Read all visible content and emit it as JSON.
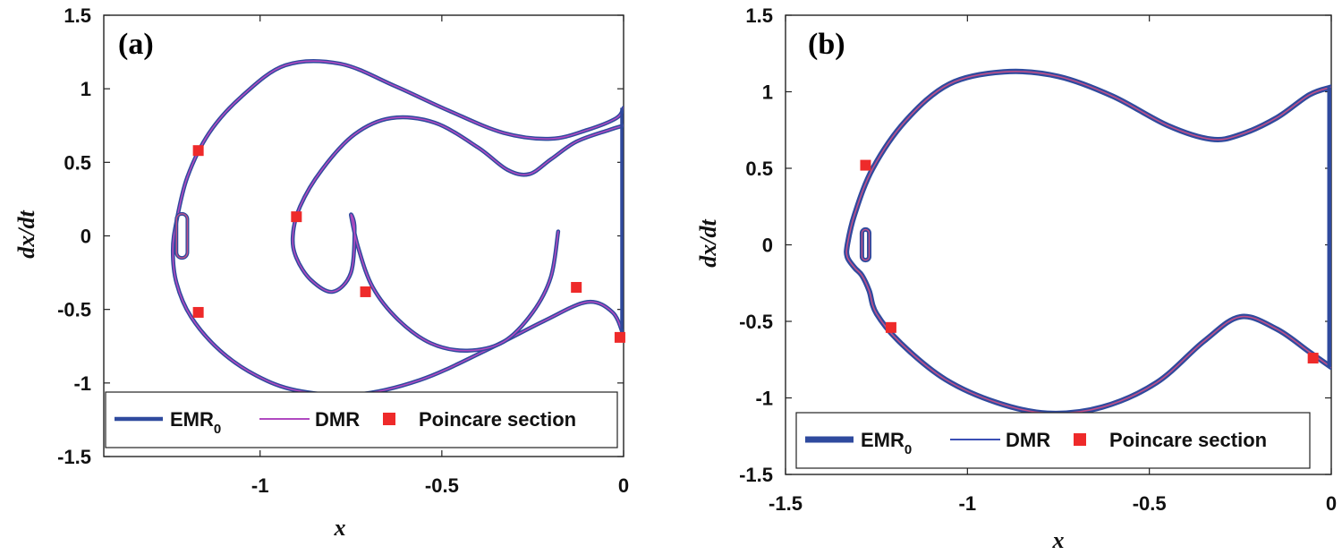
{
  "chart_data": [
    {
      "type": "line",
      "panel_label": "(a)",
      "xlabel": "x",
      "ylabel": "dx/dt",
      "xlim": [
        -1.43,
        0.0
      ],
      "ylim": [
        -1.5,
        1.5
      ],
      "xticks": [
        -1,
        -0.5,
        0
      ],
      "xtick_labels": [
        "-1",
        "-0.5",
        "0"
      ],
      "yticks": [
        -1.5,
        -1,
        -0.5,
        0,
        0.5,
        1,
        1.5
      ],
      "ytick_labels": [
        "-1.5",
        "-1",
        "-0.5",
        "0",
        "0.5",
        "1",
        "1.5"
      ],
      "legend": [
        {
          "label": "EMR",
          "sub": "0",
          "kind": "thick-line",
          "color": "#2f4a9e"
        },
        {
          "label": "DMR",
          "kind": "thin-line",
          "color": "#b04ac0"
        },
        {
          "label": "Poincare section",
          "kind": "square",
          "color": "#ee2a2a"
        }
      ],
      "series": [
        {
          "name": "EMR0 / DMR orbit",
          "x": [
            0,
            -0.02,
            -0.1,
            -0.2,
            -0.33,
            -0.48,
            -0.63,
            -0.78,
            -0.93,
            -1.05,
            -1.14,
            -1.2,
            -1.23,
            -1.24,
            -1.23,
            -1.19,
            -1.11,
            -1.01,
            -0.9,
            -0.74,
            -0.56,
            -0.38,
            -0.22,
            -0.1,
            -0.03,
            0
          ],
          "y": [
            0.87,
            0.8,
            0.72,
            0.66,
            0.7,
            0.85,
            1.02,
            1.17,
            1.16,
            0.95,
            0.7,
            0.4,
            0.1,
            -0.1,
            -0.32,
            -0.55,
            -0.78,
            -0.95,
            -1.05,
            -1.08,
            -0.98,
            -0.78,
            -0.58,
            -0.45,
            -0.52,
            -0.68
          ]
        },
        {
          "name": "EMR0 / DMR inner loop",
          "x": [
            0,
            -0.04,
            -0.13,
            -0.2,
            -0.26,
            -0.32,
            -0.4,
            -0.52,
            -0.64,
            -0.74,
            -0.83,
            -0.89,
            -0.91,
            -0.9,
            -0.86,
            -0.8,
            -0.75,
            -0.74,
            -0.75,
            -0.73,
            -0.69,
            -0.62,
            -0.53,
            -0.43,
            -0.33,
            -0.25,
            -0.2,
            -0.18
          ],
          "y": [
            0.75,
            0.72,
            0.64,
            0.52,
            0.42,
            0.45,
            0.6,
            0.77,
            0.8,
            0.69,
            0.45,
            0.2,
            0.0,
            -0.15,
            -0.3,
            -0.38,
            -0.25,
            0.05,
            0.14,
            -0.08,
            -0.35,
            -0.57,
            -0.73,
            -0.78,
            -0.72,
            -0.52,
            -0.28,
            0.03
          ]
        }
      ],
      "small_loop": {
        "x": [
          -1.23,
          -1.2
        ],
        "y": [
          -0.15,
          0.15
        ]
      },
      "poincare_points": [
        {
          "x": -1.17,
          "y": 0.58
        },
        {
          "x": -1.17,
          "y": -0.52
        },
        {
          "x": -0.9,
          "y": 0.13
        },
        {
          "x": -0.71,
          "y": -0.38
        },
        {
          "x": -0.13,
          "y": -0.35
        },
        {
          "x": -0.01,
          "y": -0.69
        }
      ]
    },
    {
      "type": "line",
      "panel_label": "(b)",
      "xlabel": "x",
      "ylabel": "dx/dt",
      "xlim": [
        -1.5,
        0.0
      ],
      "ylim": [
        -1.5,
        1.5
      ],
      "xticks": [
        -1.5,
        -1,
        -0.5,
        0
      ],
      "xtick_labels": [
        "-1.5",
        "-1",
        "-0.5",
        "0"
      ],
      "yticks": [
        -1.5,
        -1,
        -0.5,
        0,
        0.5,
        1,
        1.5
      ],
      "ytick_labels": [
        "-1.5",
        "-1",
        "-0.5",
        "0",
        "0.5",
        "1",
        "1.5"
      ],
      "legend": [
        {
          "label": "EMR",
          "sub": "0",
          "kind": "thick-line",
          "color": "#2f4a9e"
        },
        {
          "label": "DMR",
          "kind": "thin-line",
          "color": "#3b4fb5"
        },
        {
          "label": "Poincare section",
          "kind": "square",
          "color": "#ee2a2a"
        }
      ],
      "series": [
        {
          "name": "EMR0 / DMR orbit",
          "x": [
            0,
            -0.06,
            -0.15,
            -0.25,
            -0.33,
            -0.45,
            -0.6,
            -0.75,
            -0.9,
            -1.05,
            -1.17,
            -1.26,
            -1.31,
            -1.33,
            -1.33,
            -1.31,
            -1.29,
            -1.27,
            -1.25,
            -1.18,
            -1.06,
            -0.92,
            -0.78,
            -0.63,
            -0.48,
            -0.35,
            -0.25,
            -0.15,
            -0.06,
            0
          ],
          "y": [
            1.03,
            0.98,
            0.83,
            0.72,
            0.69,
            0.78,
            0.97,
            1.1,
            1.13,
            1.05,
            0.81,
            0.5,
            0.2,
            0.0,
            -0.08,
            -0.15,
            -0.2,
            -0.3,
            -0.45,
            -0.65,
            -0.88,
            -1.03,
            -1.1,
            -1.06,
            -0.9,
            -0.63,
            -0.47,
            -0.55,
            -0.7,
            -0.8
          ]
        }
      ],
      "small_loop": {
        "x": [
          -1.29,
          -1.27
        ],
        "y": [
          -0.1,
          0.1
        ]
      },
      "poincare_points": [
        {
          "x": -1.28,
          "y": 0.52
        },
        {
          "x": -1.21,
          "y": -0.54
        },
        {
          "x": -0.05,
          "y": -0.74
        }
      ]
    }
  ]
}
